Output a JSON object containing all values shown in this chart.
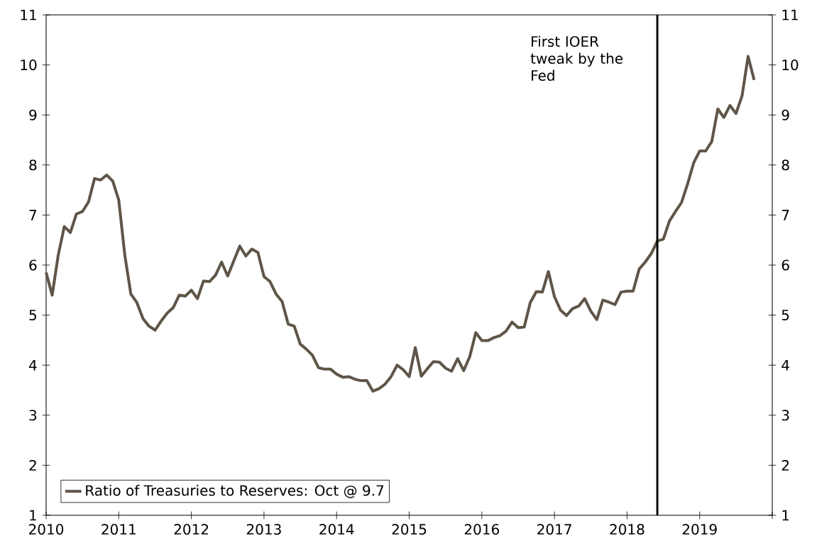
{
  "chart_data": {
    "type": "line",
    "x": [
      "2010-01",
      "2010-02",
      "2010-03",
      "2010-04",
      "2010-05",
      "2010-06",
      "2010-07",
      "2010-08",
      "2010-09",
      "2010-10",
      "2010-11",
      "2010-12",
      "2011-01",
      "2011-02",
      "2011-03",
      "2011-04",
      "2011-05",
      "2011-06",
      "2011-07",
      "2011-08",
      "2011-09",
      "2011-10",
      "2011-11",
      "2011-12",
      "2012-01",
      "2012-02",
      "2012-03",
      "2012-04",
      "2012-05",
      "2012-06",
      "2012-07",
      "2012-08",
      "2012-09",
      "2012-10",
      "2012-11",
      "2012-12",
      "2013-01",
      "2013-02",
      "2013-03",
      "2013-04",
      "2013-05",
      "2013-06",
      "2013-07",
      "2013-08",
      "2013-09",
      "2013-10",
      "2013-11",
      "2013-12",
      "2014-01",
      "2014-02",
      "2014-03",
      "2014-04",
      "2014-05",
      "2014-06",
      "2014-07",
      "2014-08",
      "2014-09",
      "2014-10",
      "2014-11",
      "2014-12",
      "2015-01",
      "2015-02",
      "2015-03",
      "2015-04",
      "2015-05",
      "2015-06",
      "2015-07",
      "2015-08",
      "2015-09",
      "2015-10",
      "2015-11",
      "2015-12",
      "2016-01",
      "2016-02",
      "2016-03",
      "2016-04",
      "2016-05",
      "2016-06",
      "2016-07",
      "2016-08",
      "2016-09",
      "2016-10",
      "2016-11",
      "2016-12",
      "2017-01",
      "2017-02",
      "2017-03",
      "2017-04",
      "2017-05",
      "2017-06",
      "2017-07",
      "2017-08",
      "2017-09",
      "2017-10",
      "2017-11",
      "2017-12",
      "2018-01",
      "2018-02",
      "2018-03",
      "2018-04",
      "2018-05",
      "2018-06",
      "2018-07",
      "2018-08",
      "2018-09",
      "2018-10",
      "2018-11",
      "2018-12",
      "2019-01",
      "2019-02",
      "2019-03",
      "2019-04",
      "2019-05",
      "2019-06",
      "2019-07",
      "2019-08",
      "2019-09",
      "2019-10"
    ],
    "series": [
      {
        "name": "Ratio of Treasuries to Reserves: Oct @ 9.7",
        "color": "#5f5548",
        "values": [
          5.85,
          5.4,
          6.2,
          6.77,
          6.65,
          7.02,
          7.07,
          7.26,
          7.73,
          7.7,
          7.8,
          7.68,
          7.3,
          6.2,
          5.42,
          5.25,
          4.93,
          4.78,
          4.7,
          4.88,
          5.04,
          5.15,
          5.4,
          5.38,
          5.5,
          5.33,
          5.68,
          5.67,
          5.8,
          6.06,
          5.78,
          6.08,
          6.38,
          6.18,
          6.32,
          6.25,
          5.77,
          5.67,
          5.42,
          5.27,
          4.82,
          4.78,
          4.42,
          4.32,
          4.2,
          3.95,
          3.92,
          3.92,
          3.82,
          3.76,
          3.77,
          3.72,
          3.69,
          3.69,
          3.48,
          3.53,
          3.62,
          3.77,
          4.0,
          3.91,
          3.77,
          4.35,
          3.78,
          3.93,
          4.07,
          4.06,
          3.94,
          3.88,
          4.13,
          3.89,
          4.17,
          4.65,
          4.49,
          4.49,
          4.55,
          4.59,
          4.68,
          4.86,
          4.75,
          4.76,
          5.25,
          5.47,
          5.46,
          5.87,
          5.37,
          5.1,
          4.99,
          5.13,
          5.18,
          5.33,
          5.08,
          4.91,
          5.3,
          5.26,
          5.21,
          5.46,
          5.48,
          5.48,
          5.92,
          6.06,
          6.23,
          6.48,
          6.52,
          6.88,
          7.07,
          7.25,
          7.62,
          8.04,
          8.28,
          8.28,
          8.47,
          9.12,
          8.95,
          9.19,
          9.03,
          9.38,
          10.17,
          9.7
        ]
      }
    ],
    "xlim": [
      "2010",
      "2020"
    ],
    "xticks": [
      "2010",
      "2011",
      "2012",
      "2013",
      "2014",
      "2015",
      "2016",
      "2017",
      "2018",
      "2019",
      {
        "value": "2020",
        "label": null
      }
    ],
    "ylim": [
      1,
      11
    ],
    "yticks": [
      1,
      2,
      3,
      4,
      5,
      6,
      7,
      8,
      9,
      10,
      11
    ],
    "y2lim": [
      1,
      11
    ],
    "y2ticks": [
      1,
      2,
      3,
      4,
      5,
      6,
      7,
      8,
      9,
      10,
      11
    ],
    "ref_lines": [
      {
        "axis": "x",
        "value": "2018-06",
        "label": "First IOER tweak by the Fed",
        "color": "#000000",
        "line_style": "solid"
      }
    ],
    "legend": "bottom left",
    "grid": false,
    "marker": "none",
    "line_style": "solid"
  }
}
